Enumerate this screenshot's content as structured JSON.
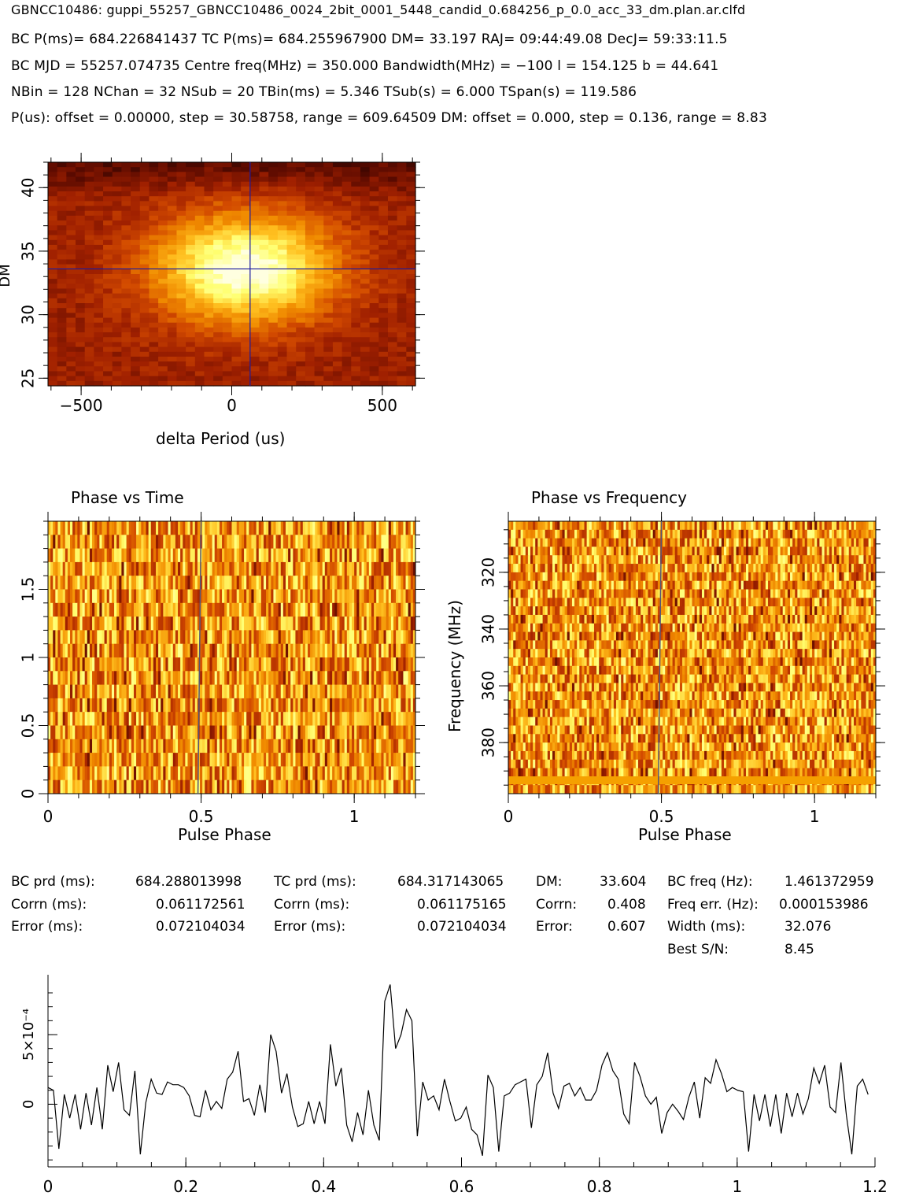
{
  "header": {
    "filename": "GBNCC10486: guppi_55257_GBNCC10486_0024_2bit_0001_5448_candid_0.684256_p_0.0_acc_33_dm.plan.ar.clfd",
    "line1": "BC P(ms)= 684.226841437 TC P(ms)= 684.255967900 DM= 33.197 RAJ= 09:44:49.08 DecJ= 59:33:11.5",
    "line2": "BC MJD = 55257.074735 Centre freq(MHz) = 350.000 Bandwidth(MHz) = −100 l = 154.125 b = 44.641",
    "line3": "NBin = 128 NChan = 32 NSub = 20 TBin(ms) = 5.346 TSub(s) = 6.000 TSpan(s) = 119.586",
    "line4": "P(us): offset = 0.00000, step = 30.58758, range = 609.64509 DM: offset = 0.000, step = 0.136, range = 8.83"
  },
  "colors": {
    "colormap": [
      "#000000",
      "#5a0a00",
      "#a02000",
      "#d24a00",
      "#f08a00",
      "#ffc020",
      "#ffff70",
      "#ffffe0"
    ],
    "crosshair": "#1a1aa0",
    "line": "#000000"
  },
  "chart_data": [
    {
      "type": "heatmap",
      "name": "dm-vs-delta-period",
      "xlabel": "delta Period (us)",
      "ylabel": "DM",
      "xlim": [
        -610,
        610
      ],
      "ylim": [
        24.4,
        42
      ],
      "xticks": [
        -500,
        0,
        500
      ],
      "yticks": [
        25,
        30,
        35,
        40
      ],
      "crosshair": {
        "x": 61,
        "y": 33.6
      },
      "peak": {
        "x": 61,
        "y": 33.6
      }
    },
    {
      "type": "heatmap",
      "title": "Phase vs Time",
      "name": "phase-vs-time",
      "xlabel": "Pulse Phase",
      "ylabel": "",
      "xlim": [
        0,
        1.2
      ],
      "ylim": [
        0,
        2
      ],
      "xticks": [
        0,
        0.5,
        1
      ],
      "yticks": [
        0,
        0.5,
        1,
        1.5
      ],
      "rows": 20,
      "marker_phase": 0.5
    },
    {
      "type": "heatmap",
      "title": "Phase vs Frequency",
      "name": "phase-vs-frequency",
      "xlabel": "Pulse Phase",
      "ylabel": "Frequency (MHz)",
      "xlim": [
        0,
        1.2
      ],
      "ylim": [
        398,
        302
      ],
      "xticks": [
        0,
        0.5,
        1
      ],
      "yticks": [
        320,
        340,
        360,
        380
      ],
      "rows": 32,
      "marker_phase": 0.5
    },
    {
      "type": "line",
      "name": "pulse-profile",
      "xlabel": "",
      "ylabel": "",
      "xlim": [
        0,
        1.2
      ],
      "ylim": [
        -0.00045,
        0.00093
      ],
      "xticks": [
        0,
        0.2,
        0.4,
        0.6,
        0.8,
        1,
        1.2
      ],
      "yticks": [
        0,
        0.0005
      ],
      "ytick_labels": [
        "0",
        "5×10⁻⁴"
      ],
      "series": [
        {
          "values": [
            1.2,
            1.0,
            -3.2,
            0.7,
            -1.0,
            0.7,
            -1.8,
            0.8,
            -1.5,
            1.2,
            -1.8,
            2.8,
            0.9,
            3.0,
            -0.4,
            -0.8,
            2.4,
            -3.6,
            0.1,
            1.8,
            0.8,
            0.7,
            1.6,
            1.4,
            1.4,
            1.2,
            0.6,
            -0.8,
            -0.9,
            1.0,
            -0.4,
            0.2,
            -0.3,
            1.8,
            2.3,
            3.8,
            0.2,
            0.4,
            -0.8,
            1.4,
            -0.6,
            5.0,
            3.8,
            0.8,
            2.2,
            -0.2,
            -1.6,
            -1.4,
            0.2,
            -1.4,
            0.2,
            -1.4,
            4.3,
            1.3,
            2.6,
            -1.5,
            -2.7,
            -0.6,
            -2.2,
            1.0,
            -1.5,
            -2.6,
            7.4,
            8.6,
            4.0,
            5.0,
            6.8,
            6.0,
            -2.3,
            1.6,
            0.3,
            0.6,
            -0.4,
            1.8,
            0.2,
            -1.2,
            -1.0,
            -0.2,
            -1.8,
            -2.2,
            -3.7,
            2.1,
            1.2,
            -3.4,
            0.6,
            0.8,
            1.4,
            1.6,
            1.8,
            -1.7,
            1.4,
            2.0,
            3.7,
            0.8,
            -0.3,
            1.3,
            1.5,
            0.6,
            1.2,
            0.3,
            0.3,
            1.0,
            2.8,
            3.7,
            2.4,
            1.8,
            -0.7,
            -1.4,
            3.0,
            2.0,
            0.6,
            0.0,
            0.5,
            -2.1,
            -0.6,
            0.0,
            -0.5,
            -1.1,
            0.5,
            1.6,
            -1.0,
            1.9,
            1.5,
            3.2,
            2.2,
            0.9,
            1.2,
            1.0,
            0.9,
            -3.4,
            0.7,
            -1.2,
            0.7,
            -1.6,
            0.7,
            -2.1,
            0.8,
            -0.9,
            0.8,
            -0.7,
            0.4,
            2.6,
            1.5,
            2.8,
            -0.2,
            -0.6,
            3.0,
            -0.8,
            -3.6,
            1.3,
            1.8,
            0.7
          ]
        }
      ],
      "y_scale": 0.0001
    }
  ],
  "stats": {
    "col1": {
      "r1l": "BC prd (ms):",
      "r1v": "684.288013998",
      "r2l": "Corrn (ms):",
      "r2v": "0.061172561",
      "r3l": "Error (ms):",
      "r3v": "0.072104034"
    },
    "col2": {
      "r1l": "TC prd (ms):",
      "r1v": "684.317143065",
      "r2l": "Corrn (ms):",
      "r2v": "0.061175165",
      "r3l": "Error (ms):",
      "r3v": "0.072104034"
    },
    "col3": {
      "r1l": "DM:",
      "r1v": "33.604",
      "r2l": "Corrn:",
      "r2v": "0.408",
      "r3l": "Error:",
      "r3v": "0.607"
    },
    "col4": {
      "r1l": "BC freq (Hz):",
      "r1v": "1.461372959",
      "r2l": "Freq err. (Hz):",
      "r2v": "0.000153986",
      "r3l": "Width (ms):",
      "r3v": "32.076",
      "r4l": "Best S/N:",
      "r4v": "8.45"
    }
  }
}
